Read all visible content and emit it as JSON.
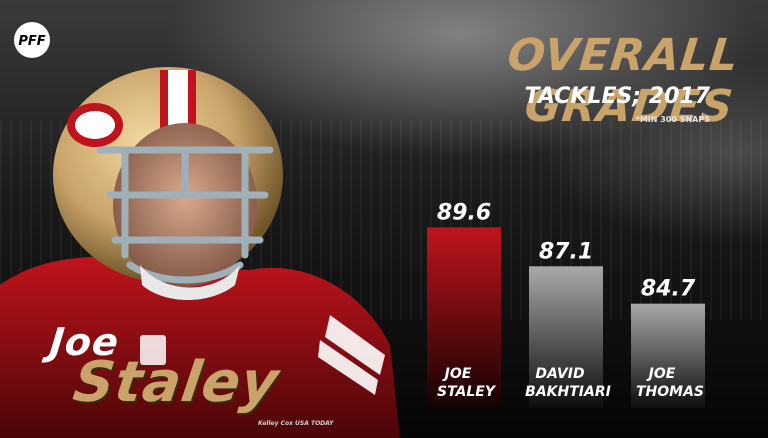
{
  "brand": {
    "logo_text": "PFF"
  },
  "header": {
    "title": "Overall Grades",
    "subtitle": "Tackles; 2017",
    "note": "*Min 300 snaps"
  },
  "player": {
    "first_name": "Joe",
    "last_name": "Staley"
  },
  "credit": "Kelley Cox USA TODAY",
  "colors": {
    "accent_gold": "#c9a36a",
    "highlight_bar": "#c0141c",
    "other_bar": "#a9a9a9"
  },
  "chart_data": {
    "type": "bar",
    "title": "Overall Grades",
    "subtitle": "Tackles; 2017",
    "categories": [
      {
        "line1": "Joe",
        "line2": "Staley"
      },
      {
        "line1": "David",
        "line2": "Bakhtiari"
      },
      {
        "line1": "Joe",
        "line2": "Thomas"
      }
    ],
    "values": [
      89.6,
      87.1,
      84.7
    ],
    "value_labels": [
      "89.6",
      "87.1",
      "84.7"
    ],
    "highlight_index": 0,
    "ylim": [
      0,
      100
    ],
    "grid": false,
    "xlabel": "",
    "ylabel": ""
  }
}
